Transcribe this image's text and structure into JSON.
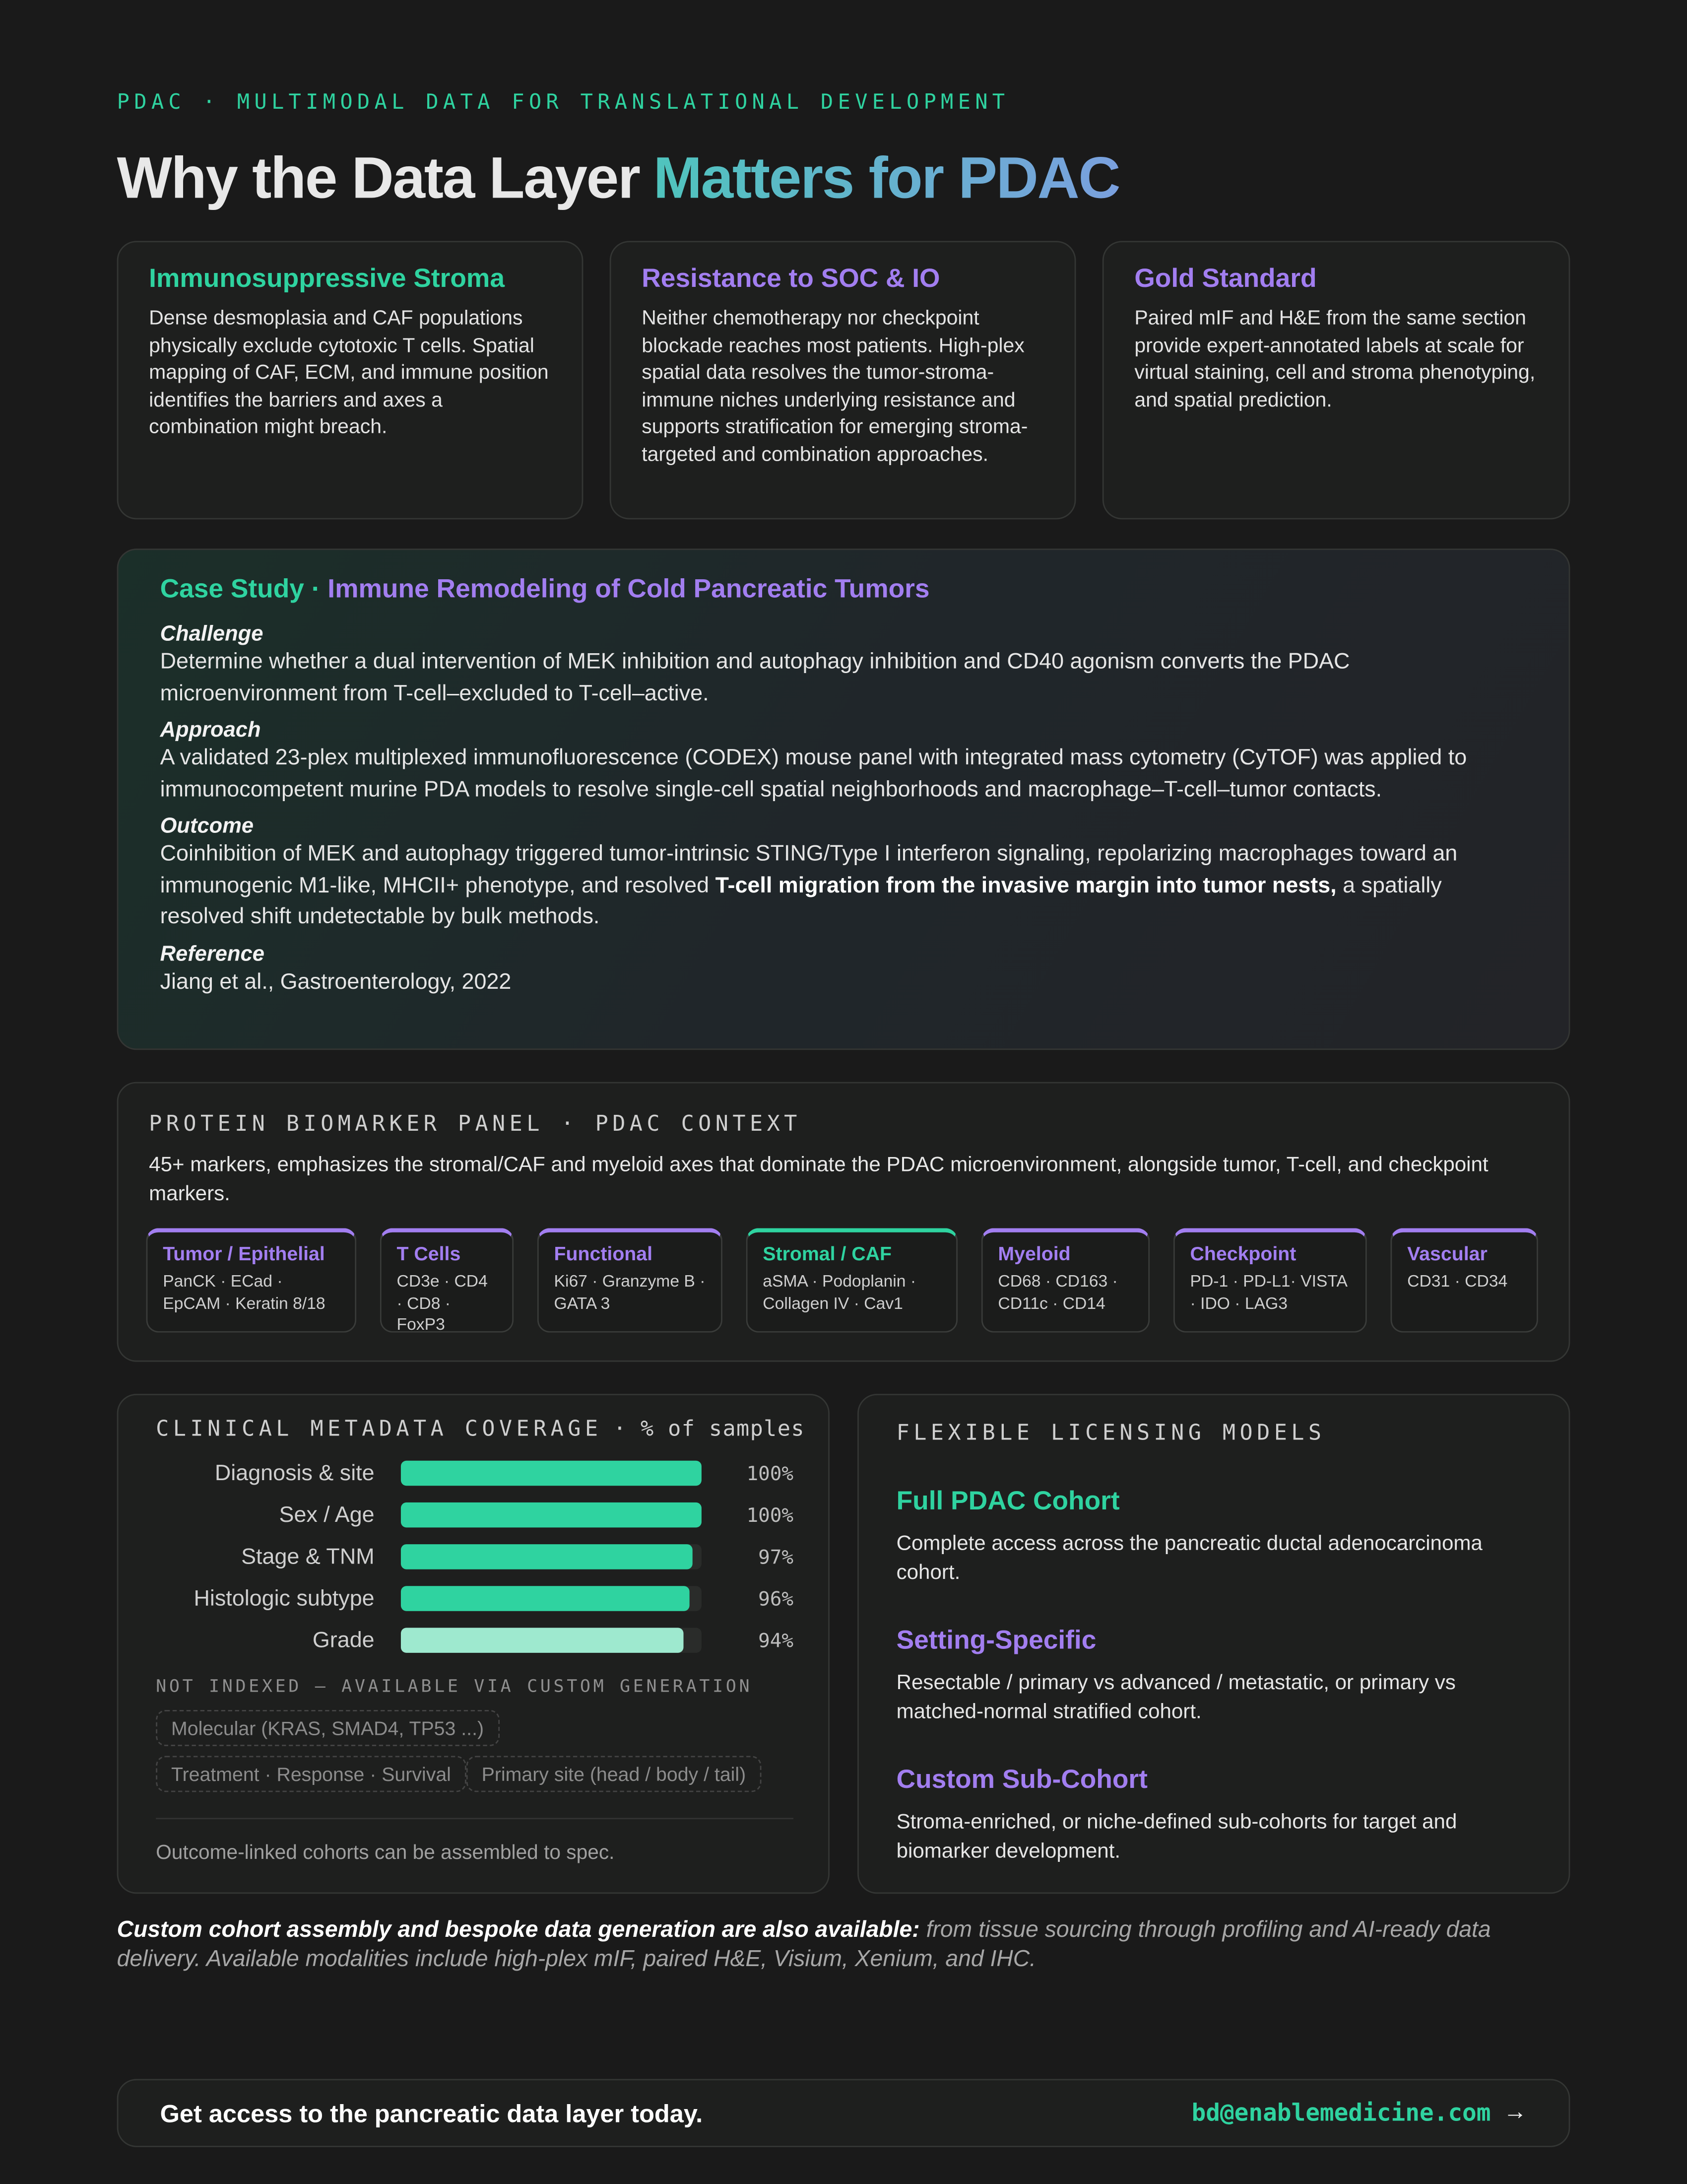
{
  "header": {
    "eyebrow": "PDAC · MULTIMODAL DATA FOR TRANSLATIONAL DEVELOPMENT",
    "title": "Why the Data Layer",
    "title_highlight": "Matters for PDAC"
  },
  "cards": [
    {
      "title": "Immunosuppressive Stroma",
      "color": "#2fd3a0",
      "body": "Dense desmoplasia and CAF populations physically exclude cytotoxic T cells. Spatial mapping of CAF, ECM, and immune position identifies the barriers and axes a combination might breach."
    },
    {
      "title": "Resistance to SOC & IO",
      "color": "#a27ef0",
      "body": "Neither chemotherapy nor checkpoint blockade reaches most patients. High-plex spatial data resolves the tumor-stroma-immune niches underlying resistance and supports stratification for emerging stroma-targeted and combination approaches."
    },
    {
      "title": "Gold Standard",
      "color": "#a27ef0",
      "body": "Paired mIF and H&E from the same section provide expert-annotated labels at scale for virtual staining, cell and stroma phenotyping, and spatial prediction."
    }
  ],
  "case_study": {
    "label": "Case Study ·",
    "title": "Immune Remodeling of Cold Pancreatic Tumors",
    "challenge": {
      "heading": "Challenge",
      "text": "Determine whether a dual intervention of MEK inhibition and autophagy inhibition and CD40 agonism converts the PDAC microenvironment from T-cell–excluded to T-cell–active."
    },
    "approach": {
      "heading": "Approach",
      "text": "A validated 23-plex multiplexed immunofluorescence (CODEX) mouse panel with integrated mass cytometry (CyTOF) was applied to immunocompetent murine PDA models to resolve single-cell spatial neighborhoods and macrophage–T-cell–tumor contacts."
    },
    "outcome": {
      "heading": "Outcome",
      "text": "Coinhibition of MEK and autophagy triggered tumor-intrinsic STING/Type I interferon signaling, repolarizing macrophages toward an immunogenic M1-like, MHCII+ phenotype, and resolved",
      "emphasis": "T-cell migration from the invasive margin into tumor nests,",
      "text_end": "a spatially resolved shift undetectable by bulk methods."
    },
    "reference": {
      "heading": "Reference",
      "text": "Jiang et al., Gastroenterology, 2022"
    }
  },
  "panel": {
    "title": "PROTEIN BIOMARKER PANEL · PDAC CONTEXT",
    "description": "45+ markers, emphasizes the stromal/CAF and myeloid axes that dominate the PDAC microenvironment, alongside tumor, T-cell, and checkpoint markers.",
    "groups": [
      {
        "name": "Tumor / Epithelial",
        "markers": "PanCK · ECad · EpCAM · Keratin 8/18",
        "color": "#a27ef0"
      },
      {
        "name": "T Cells",
        "markers": "CD3e · CD4 · CD8 · FoxP3",
        "color": "#a27ef0"
      },
      {
        "name": "Functional",
        "markers": "Ki67 · Granzyme B · GATA 3",
        "color": "#a27ef0"
      },
      {
        "name": "Stromal / CAF",
        "markers": "aSMA · Podoplanin · Collagen IV · Cav1",
        "color": "#2fd3a0"
      },
      {
        "name": "Myeloid",
        "markers": "CD68 · CD163 · CD11c · CD14",
        "color": "#a27ef0"
      },
      {
        "name": "Checkpoint",
        "markers": "PD-1 · PD-L1· VISTA · IDO · LAG3",
        "color": "#a27ef0"
      },
      {
        "name": "Vascular",
        "markers": "CD31 · CD34",
        "color": "#a27ef0"
      }
    ]
  },
  "coverage": {
    "title": "CLINICAL METADATA COVERAGE",
    "unit_label": "· % of samples",
    "xlim": [
      0,
      100
    ],
    "rows": [
      {
        "label": "Diagnosis & site",
        "value": 100,
        "value_label": "100%",
        "color": "#2fd3a0"
      },
      {
        "label": "Sex / Age",
        "value": 100,
        "value_label": "100%",
        "color": "#2fd3a0"
      },
      {
        "label": "Stage & TNM",
        "value": 97,
        "value_label": "97%",
        "color": "#2fd3a0"
      },
      {
        "label": "Histologic subtype",
        "value": 96,
        "value_label": "96%",
        "color": "#2fd3a0"
      },
      {
        "label": "Grade",
        "value": 94,
        "value_label": "94%",
        "color": "#9ee9cf"
      }
    ],
    "not_indexed": {
      "title": "NOT INDEXED — AVAILABLE VIA CUSTOM GENERATION",
      "tags": [
        "Molecular (KRAS, SMAD4, TP53 ...)",
        "Treatment · Response · Survival",
        "Primary site (head / body / tail)"
      ]
    },
    "note": "Outcome-linked cohorts can be assembled to spec."
  },
  "licensing": {
    "title": "FLEXIBLE LICENSING MODELS",
    "models": [
      {
        "name": "Full PDAC Cohort",
        "color": "#2fd3a0",
        "description": "Complete access across the pancreatic ductal adenocarcinoma cohort."
      },
      {
        "name": "Setting-Specific",
        "color": "#a27ef0",
        "description": "Resectable / primary vs advanced / metastatic, or primary vs matched-normal stratified cohort."
      },
      {
        "name": "Custom Sub-Cohort",
        "color": "#a27ef0",
        "description": "Stroma-enriched, or niche-defined sub-cohorts for target and biomarker development."
      }
    ]
  },
  "footnote": {
    "lead": "Custom cohort assembly and bespoke data generation are also available:",
    "text": "from tissue sourcing through profiling and AI-ready data delivery. Available modalities include high-plex mIF, paired H&E, Visium, Xenium, and IHC."
  },
  "cta": {
    "text": "Get access to the pancreatic data layer today.",
    "email": "bd@enablemedicine.com",
    "arrow": "→"
  }
}
